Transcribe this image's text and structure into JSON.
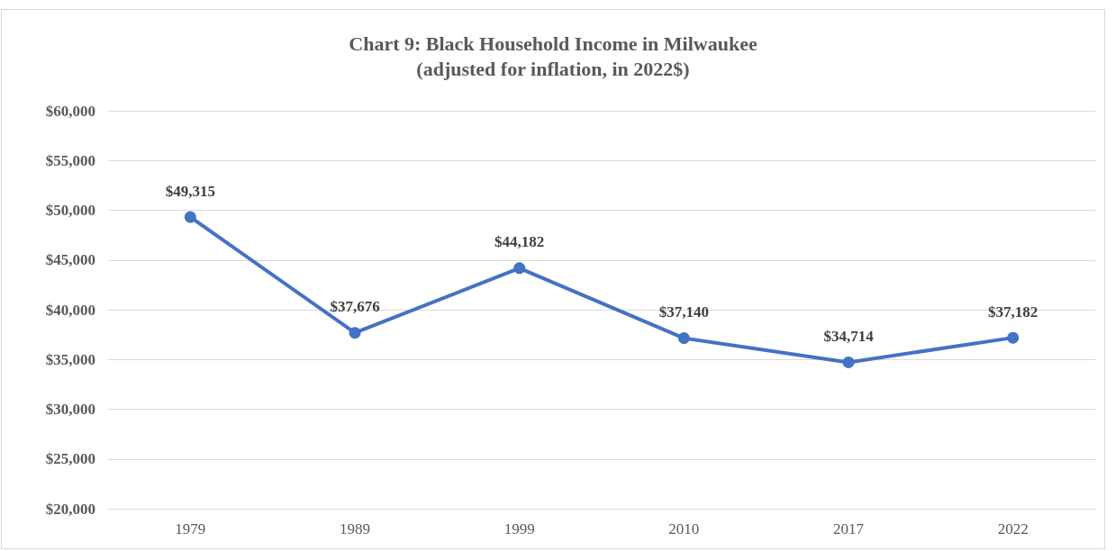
{
  "chart_data": {
    "type": "line",
    "title": "Chart 9: Black Household Income in Milwaukee\n(adjusted for inflation, in 2022$)",
    "categories": [
      "1979",
      "1989",
      "1999",
      "2010",
      "2017",
      "2022"
    ],
    "series": [
      {
        "color": "#4472c4",
        "values": [
          49315,
          37676,
          44182,
          37140,
          34714,
          37182
        ],
        "value_labels": [
          "$49,315",
          "$37,676",
          "$44,182",
          "$37,140",
          "$34,714",
          "$37,182"
        ]
      }
    ],
    "ylim": [
      20000,
      60000
    ],
    "yticks": [
      {
        "value": 20000,
        "label": "$20,000"
      },
      {
        "value": 25000,
        "label": "$25,000"
      },
      {
        "value": 30000,
        "label": "$30,000"
      },
      {
        "value": 35000,
        "label": "$35,000"
      },
      {
        "value": 40000,
        "label": "$40,000"
      },
      {
        "value": 45000,
        "label": "$45,000"
      },
      {
        "value": 50000,
        "label": "$50,000"
      },
      {
        "value": 55000,
        "label": "$55,000"
      },
      {
        "value": 60000,
        "label": "$60,000"
      }
    ],
    "grid": "y",
    "marker": "circle",
    "line_style": "solid"
  }
}
